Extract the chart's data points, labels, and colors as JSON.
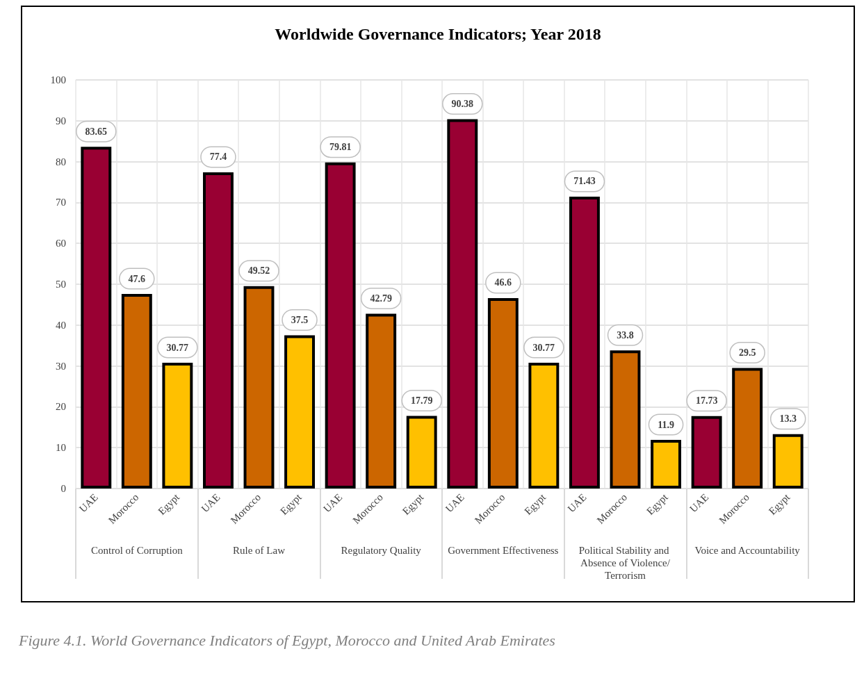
{
  "chart_data": {
    "type": "bar",
    "title": "Worldwide Governance Indicators; Year 2018",
    "categories": [
      "Control of Corruption",
      "Rule of Law",
      "Regulatory Quality",
      "Government Effectiveness",
      "Political Stability and Absence of Violence/Terrorism",
      "Voice and Accountability"
    ],
    "series": [
      {
        "name": "UAE",
        "color": "#990033",
        "values": [
          83.65,
          77.4,
          79.81,
          90.38,
          71.43,
          17.73
        ]
      },
      {
        "name": "Morocco",
        "color": "#cc6600",
        "values": [
          47.6,
          49.52,
          42.79,
          46.6,
          33.8,
          29.5
        ]
      },
      {
        "name": "Egypt",
        "color": "#ffc000",
        "values": [
          30.77,
          37.5,
          17.79,
          30.77,
          11.9,
          13.3
        ]
      }
    ],
    "ylim": [
      0,
      100
    ],
    "yticks": [
      0,
      10,
      20,
      30,
      40,
      50,
      60,
      70,
      80,
      90,
      100
    ],
    "grid": true,
    "data_labels": true,
    "annotations": [
      "Figure 4.1. World Governance Indicators of Egypt, Morocco and United Arab Emirates"
    ]
  }
}
